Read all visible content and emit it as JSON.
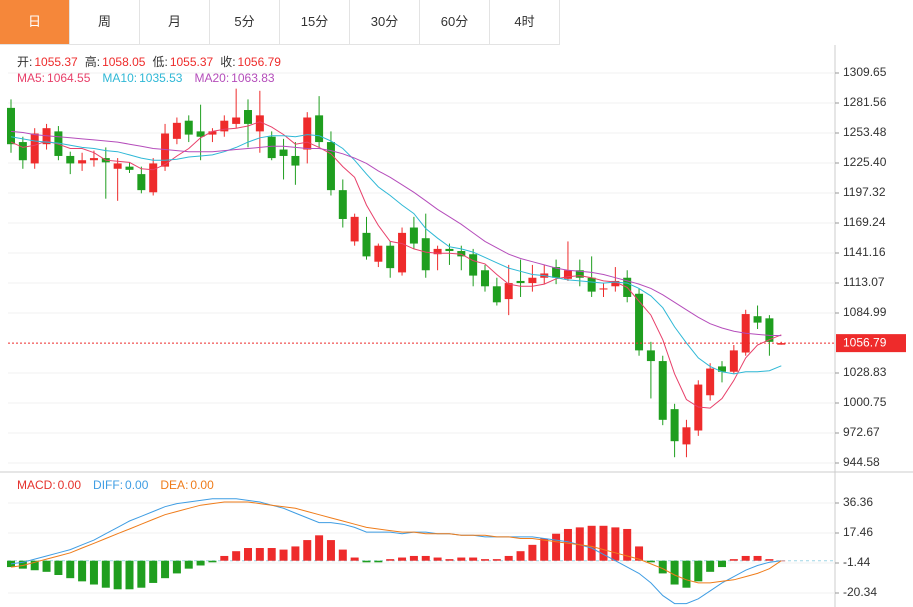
{
  "tabs": [
    "日",
    "周",
    "月",
    "5分",
    "15分",
    "30分",
    "60分",
    "4时"
  ],
  "active_tab": 0,
  "chart_data": [
    {
      "type": "candlestick",
      "ohlc_labels": [
        "开:",
        "高:",
        "低:",
        "收:"
      ],
      "open": [
        1277,
        1245,
        1225,
        1243,
        1255,
        1232,
        1225,
        1228,
        1230,
        1220,
        1222,
        1215,
        1198,
        1222,
        1248,
        1265,
        1255,
        1252,
        1255,
        1262,
        1275,
        1255,
        1250,
        1238,
        1232,
        1238,
        1270,
        1245,
        1200,
        1152,
        1160,
        1133,
        1148,
        1123,
        1165,
        1155,
        1140,
        1145,
        1143,
        1140,
        1125,
        1110,
        1098,
        1115,
        1113,
        1118,
        1128,
        1117,
        1125,
        1118,
        1107,
        1110,
        1118,
        1103,
        1050,
        1040,
        995,
        962,
        975,
        1008,
        1035,
        1030,
        1048,
        1082,
        1080,
        1055.37
      ],
      "high": [
        1285,
        1250,
        1258,
        1262,
        1260,
        1236,
        1235,
        1237,
        1240,
        1230,
        1226,
        1222,
        1230,
        1262,
        1268,
        1270,
        1280,
        1258,
        1270,
        1295,
        1285,
        1293,
        1255,
        1248,
        1245,
        1273,
        1288,
        1255,
        1210,
        1178,
        1175,
        1150,
        1152,
        1165,
        1175,
        1178,
        1148,
        1150,
        1148,
        1145,
        1130,
        1118,
        1130,
        1135,
        1130,
        1130,
        1135,
        1152,
        1135,
        1138,
        1113,
        1128,
        1125,
        1108,
        1058,
        1045,
        1000,
        985,
        1022,
        1038,
        1040,
        1055,
        1088,
        1092,
        1083,
        1058.05
      ],
      "low": [
        1235,
        1220,
        1220,
        1238,
        1228,
        1215,
        1218,
        1222,
        1192,
        1190,
        1216,
        1197,
        1195,
        1218,
        1243,
        1245,
        1228,
        1245,
        1250,
        1258,
        1240,
        1235,
        1228,
        1210,
        1205,
        1225,
        1240,
        1195,
        1165,
        1148,
        1135,
        1128,
        1118,
        1120,
        1145,
        1118,
        1125,
        1130,
        1125,
        1110,
        1105,
        1092,
        1083,
        1100,
        1105,
        1112,
        1112,
        1115,
        1110,
        1100,
        1100,
        1105,
        1095,
        1045,
        1005,
        980,
        950,
        950,
        970,
        1003,
        1020,
        1028,
        1045,
        1070,
        1045,
        1055.37
      ],
      "close": [
        1243,
        1228,
        1253,
        1258,
        1232,
        1225,
        1228,
        1230,
        1226,
        1225,
        1219,
        1200,
        1225,
        1253,
        1263,
        1252,
        1250,
        1255,
        1265,
        1268,
        1262,
        1270,
        1230,
        1232,
        1223,
        1268,
        1245,
        1200,
        1173,
        1175,
        1138,
        1148,
        1127,
        1160,
        1150,
        1125,
        1145,
        1143,
        1138,
        1120,
        1110,
        1095,
        1113,
        1113,
        1118,
        1122,
        1118,
        1125,
        1118,
        1105,
        1108,
        1115,
        1100,
        1050,
        1040,
        985,
        965,
        978,
        1018,
        1033,
        1030,
        1050,
        1084,
        1076,
        1058,
        1056.79
      ],
      "up_color": "#ee2b2b",
      "down_color": "#1f9e1f",
      "price_line_color": "#ee2b2b",
      "series": [
        {
          "name": "MA5:",
          "color": "#e8406a",
          "values": [
            1245,
            1240,
            1242,
            1246,
            1243,
            1239,
            1239,
            1235,
            1228,
            1227,
            1226,
            1220,
            1219,
            1224,
            1232,
            1239,
            1249,
            1255,
            1257,
            1258,
            1260,
            1264,
            1259,
            1252,
            1243,
            1245,
            1240,
            1234,
            1222,
            1212,
            1186,
            1167,
            1152,
            1150,
            1145,
            1142,
            1141,
            1141,
            1140,
            1134,
            1131,
            1121,
            1112,
            1110,
            1110,
            1112,
            1117,
            1119,
            1120,
            1118,
            1115,
            1114,
            1109,
            1096,
            1083,
            1060,
            1028,
            1004,
            997,
            996,
            1005,
            1022,
            1043,
            1055,
            1060,
            1064.55
          ]
        },
        {
          "name": "MA10:",
          "color": "#2fb8d6",
          "values": [
            1250,
            1248,
            1246,
            1245,
            1244,
            1242,
            1240,
            1239,
            1237,
            1236,
            1233,
            1230,
            1228,
            1228,
            1229,
            1231,
            1232,
            1233,
            1236,
            1240,
            1245,
            1249,
            1251,
            1251,
            1250,
            1252,
            1251,
            1246,
            1239,
            1228,
            1215,
            1203,
            1195,
            1186,
            1178,
            1164,
            1155,
            1147,
            1145,
            1142,
            1137,
            1132,
            1127,
            1124,
            1121,
            1120,
            1118,
            1116,
            1115,
            1114,
            1113,
            1114,
            1113,
            1108,
            1101,
            1090,
            1072,
            1057,
            1043,
            1035,
            1030,
            1028,
            1030,
            1030,
            1031,
            1035.53
          ]
        },
        {
          "name": "MA20:",
          "color": "#b54dbb",
          "values": [
            1255,
            1254,
            1252,
            1251,
            1250,
            1249,
            1248,
            1247,
            1246,
            1245,
            1243,
            1241,
            1239,
            1238,
            1237,
            1236,
            1236,
            1236,
            1237,
            1238,
            1239,
            1240,
            1241,
            1241,
            1240,
            1239,
            1239,
            1237,
            1234,
            1230,
            1225,
            1218,
            1212,
            1205,
            1198,
            1190,
            1182,
            1175,
            1168,
            1160,
            1152,
            1146,
            1140,
            1136,
            1133,
            1130,
            1127,
            1125,
            1124,
            1123,
            1121,
            1118,
            1115,
            1112,
            1108,
            1102,
            1095,
            1088,
            1081,
            1075,
            1071,
            1068,
            1066,
            1065,
            1064,
            1063.83
          ]
        }
      ],
      "ylim": [
        936.16,
        1335.86
      ],
      "yticks": [
        944.58,
        972.67,
        1000.75,
        1028.83,
        1084.99,
        1113.07,
        1141.16,
        1169.24,
        1197.32,
        {
          "value": 1225.4,
          "label": "1225.40"
        },
        1253.48,
        1281.56,
        1309.65
      ],
      "grid": true
    },
    {
      "type": "macd",
      "readout": [
        {
          "name": "MACD:",
          "value": {
            "value": 0,
            "label": "0.00"
          },
          "color": "#e5322d"
        },
        {
          "name": "DIFF:",
          "value": {
            "value": 0,
            "label": "0.00"
          },
          "color": "#3f9de3"
        },
        {
          "name": "DEA:",
          "value": {
            "value": 0,
            "label": "0.00"
          },
          "color": "#ef7c1a"
        }
      ],
      "values": [
        -4,
        -5,
        -6,
        -7,
        -9,
        -11,
        -13,
        -15,
        -17,
        -18,
        -18,
        -17,
        -14,
        -11,
        -8,
        -5,
        -3,
        -1,
        3,
        6,
        8,
        8,
        8,
        7,
        9,
        13,
        16,
        13,
        7,
        2,
        -1,
        -1,
        1,
        2,
        3,
        3,
        2,
        1,
        2,
        2,
        1,
        1,
        3,
        6,
        10,
        14,
        17,
        20,
        21,
        22,
        22,
        21,
        20,
        9,
        -1,
        -8,
        -15,
        -17,
        -13,
        -7,
        -4,
        1,
        3,
        3,
        1,
        0
      ],
      "up_color": "#ee2b2b",
      "down_color": "#1f9e1f",
      "series": [
        {
          "color": "#3f9de3",
          "values": [
            -2,
            -1,
            1,
            3,
            5,
            7,
            10,
            13,
            17,
            21,
            25,
            28,
            31,
            34,
            36,
            37,
            38,
            39,
            39,
            39,
            38,
            37,
            35,
            33,
            30,
            27,
            24,
            24,
            23,
            21,
            18,
            18,
            18,
            17,
            18,
            18,
            17,
            17,
            16,
            16,
            15,
            15,
            15,
            15,
            15,
            14,
            13,
            12,
            10,
            8,
            4,
            0,
            -4,
            -8,
            -14,
            -22,
            -27,
            -27,
            -24,
            -19,
            -14,
            -10,
            -6,
            -3,
            -1,
            0
          ]
        },
        {
          "color": "#ef7c1a",
          "values": [
            -4,
            -3,
            -1,
            1,
            3,
            5,
            8,
            11,
            14,
            17,
            20,
            23,
            26,
            29,
            31,
            33,
            35,
            36,
            37,
            37,
            37,
            36,
            35,
            34,
            33,
            31,
            29,
            27,
            25,
            23,
            21,
            20,
            19,
            18,
            18,
            17,
            17,
            17,
            16,
            16,
            16,
            15,
            15,
            14,
            14,
            13,
            12,
            11,
            10,
            9,
            7,
            5,
            3,
            1,
            -2,
            -5,
            -9,
            -12,
            -14,
            -14,
            -13,
            -12,
            -10,
            -8,
            -5,
            0
          ]
        }
      ],
      "ylim": [
        -27.9,
        54
      ],
      "yticks": [
        36.36,
        17.46,
        -1.44,
        -20.34
      ],
      "grid": true
    }
  ]
}
